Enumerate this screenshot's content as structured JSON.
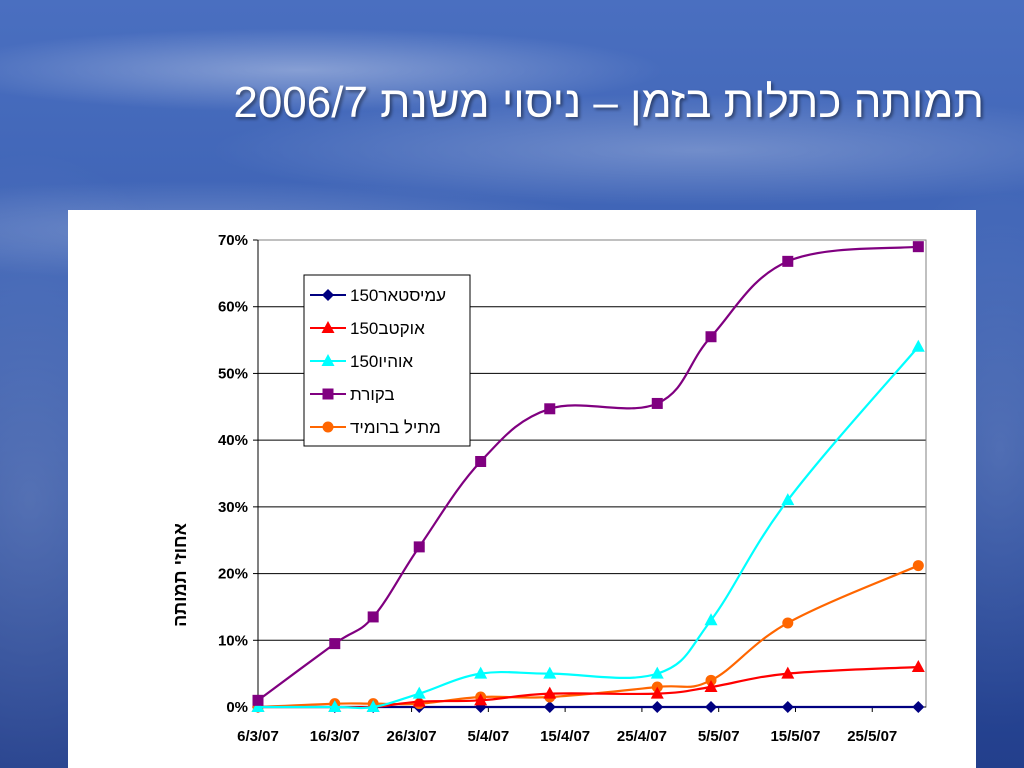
{
  "slide": {
    "title": "תמותה כתלות בזמן – ניסוי משנת 2006/7"
  },
  "chart_data": {
    "type": "line",
    "title": "",
    "xlabel": "",
    "ylabel": "אחוזי תמותה",
    "xticks": [
      "6/3/07",
      "16/3/07",
      "26/3/07",
      "5/4/07",
      "15/4/07",
      "25/4/07",
      "5/5/07",
      "15/5/07",
      "25/5/07"
    ],
    "x_range": [
      "6/3/07",
      "1/6/07"
    ],
    "y_ticks": [
      "0%",
      "10%",
      "20%",
      "30%",
      "40%",
      "50%",
      "60%",
      "70%"
    ],
    "ylim": [
      0,
      70
    ],
    "grid": true,
    "legend_position": "top-left",
    "series": [
      {
        "name": "עמיסטאר150",
        "color": "#000080",
        "marker": "diamond",
        "points": [
          [
            "6/3/07",
            0
          ],
          [
            "16/3/07",
            0
          ],
          [
            "21/3/07",
            0
          ],
          [
            "27/3/07",
            0
          ],
          [
            "4/4/07",
            0
          ],
          [
            "13/4/07",
            0
          ],
          [
            "27/4/07",
            0
          ],
          [
            "4/5/07",
            0
          ],
          [
            "14/5/07",
            0
          ],
          [
            "31/5/07",
            0
          ]
        ]
      },
      {
        "name": "אוקטב150",
        "color": "#ff0000",
        "marker": "triangle",
        "points": [
          [
            "6/3/07",
            0
          ],
          [
            "16/3/07",
            0
          ],
          [
            "21/3/07",
            0
          ],
          [
            "27/3/07",
            0.8
          ],
          [
            "4/4/07",
            1
          ],
          [
            "13/4/07",
            2
          ],
          [
            "27/4/07",
            2
          ],
          [
            "4/5/07",
            3
          ],
          [
            "14/5/07",
            5
          ],
          [
            "31/5/07",
            6
          ]
        ]
      },
      {
        "name": "אוהיו150",
        "color": "#00ffff",
        "marker": "triangle",
        "points": [
          [
            "6/3/07",
            0
          ],
          [
            "16/3/07",
            0
          ],
          [
            "21/3/07",
            0
          ],
          [
            "27/3/07",
            2
          ],
          [
            "4/4/07",
            5
          ],
          [
            "13/4/07",
            5
          ],
          [
            "27/4/07",
            5
          ],
          [
            "4/5/07",
            13
          ],
          [
            "14/5/07",
            31
          ],
          [
            "31/5/07",
            54
          ]
        ]
      },
      {
        "name": "בקורת",
        "color": "#800080",
        "marker": "square",
        "points": [
          [
            "6/3/07",
            1
          ],
          [
            "16/3/07",
            9.5
          ],
          [
            "21/3/07",
            13.5
          ],
          [
            "27/3/07",
            24
          ],
          [
            "4/4/07",
            36.8
          ],
          [
            "13/4/07",
            44.7
          ],
          [
            "27/4/07",
            45.5
          ],
          [
            "4/5/07",
            55.5
          ],
          [
            "14/5/07",
            66.8
          ],
          [
            "31/5/07",
            69
          ]
        ]
      },
      {
        "name": "מתיל ברומיד",
        "color": "#ff6600",
        "marker": "circle",
        "points": [
          [
            "6/3/07",
            0
          ],
          [
            "16/3/07",
            0.5
          ],
          [
            "21/3/07",
            0.5
          ],
          [
            "27/3/07",
            0.5
          ],
          [
            "4/4/07",
            1.5
          ],
          [
            "13/4/07",
            1.5
          ],
          [
            "27/4/07",
            3
          ],
          [
            "4/5/07",
            4
          ],
          [
            "14/5/07",
            12.6
          ],
          [
            "31/5/07",
            21.2
          ]
        ]
      }
    ]
  }
}
